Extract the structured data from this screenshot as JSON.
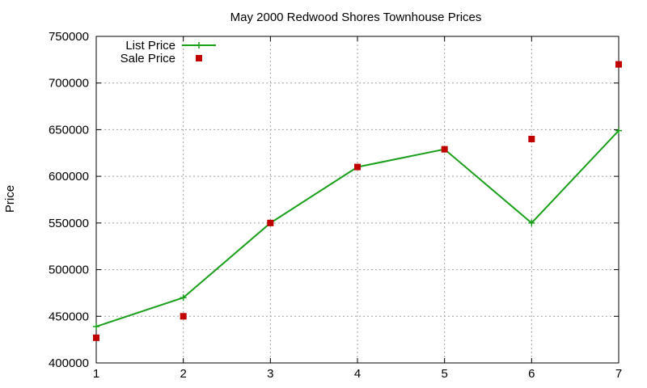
{
  "chart_data": {
    "type": "line",
    "title": "May 2000 Redwood Shores Townhouse Prices",
    "xlabel": "",
    "ylabel": "Price",
    "xlim": [
      1,
      7
    ],
    "ylim": [
      400000,
      750000
    ],
    "x_ticks": [
      "1",
      "2",
      "3",
      "4",
      "5",
      "6",
      "7"
    ],
    "y_ticks": [
      "400000",
      "450000",
      "500000",
      "550000",
      "600000",
      "650000",
      "700000",
      "750000"
    ],
    "grid": true,
    "legend_position": "top-left",
    "series": [
      {
        "name": "List Price",
        "kind": "line",
        "marker": "plus",
        "color": "#1a9f1a",
        "x": [
          1,
          2,
          3,
          4,
          5,
          6,
          7
        ],
        "values": [
          439000,
          470000,
          550000,
          610000,
          629000,
          550000,
          649000
        ]
      },
      {
        "name": "Sale Price",
        "kind": "points",
        "marker": "square",
        "color": "#c00000",
        "x": [
          1,
          2,
          3,
          4,
          5,
          6,
          7
        ],
        "values": [
          427000,
          450000,
          550000,
          610000,
          629000,
          640000,
          720000
        ]
      }
    ]
  }
}
